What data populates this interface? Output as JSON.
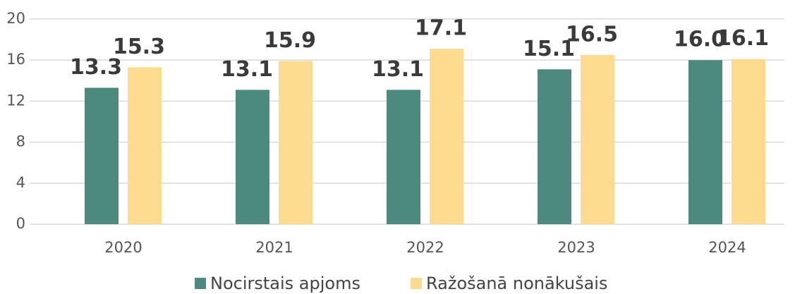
{
  "chart_data": {
    "type": "bar",
    "categories": [
      "2020",
      "2021",
      "2022",
      "2023",
      "2024"
    ],
    "series": [
      {
        "name": "Nocirstais apjoms",
        "color": "#4e8a80",
        "values": [
          13.3,
          13.1,
          13.1,
          15.1,
          16.0
        ],
        "value_labels": [
          "13.3",
          "13.1",
          "13.1",
          "15.1",
          "16.0"
        ]
      },
      {
        "name": "Ražošanā nonākušais",
        "color": "#fddc91",
        "values": [
          15.3,
          15.9,
          17.1,
          16.5,
          16.1
        ],
        "value_labels": [
          "15.3",
          "15.9",
          "17.1",
          "16.5",
          "16.1"
        ]
      }
    ],
    "ylim": [
      0,
      20
    ],
    "yticks": [
      0,
      4,
      8,
      12,
      16,
      20
    ],
    "grid": true,
    "legend": "bottom"
  }
}
